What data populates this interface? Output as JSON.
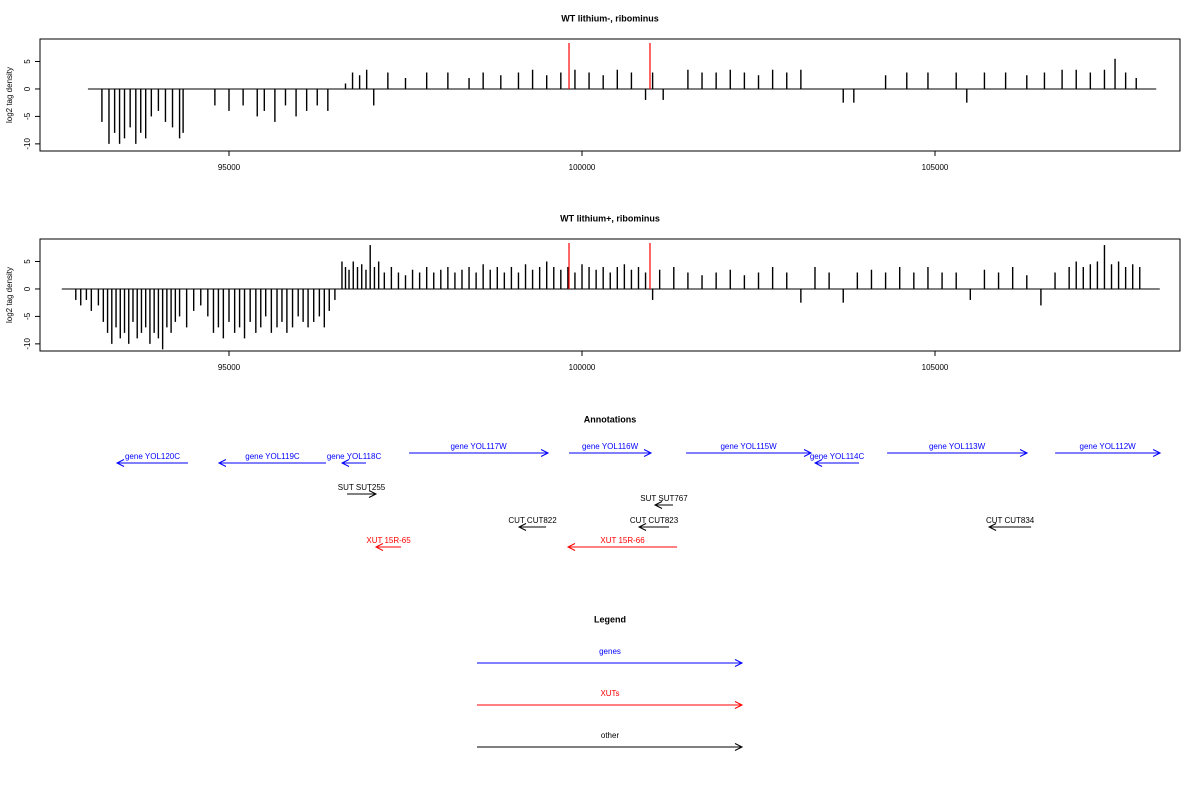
{
  "chart_data": [
    {
      "type": "bar",
      "title": "WT lithium-, ribominus",
      "y_label": "log2 tag density",
      "xlim": [
        92323,
        108470
      ],
      "ylim": [
        -11.3,
        9.1
      ],
      "xticks": [
        95000,
        100000,
        105000
      ],
      "yticks": [
        -10,
        -5,
        0,
        5
      ],
      "color": "#000000",
      "highlight_color": "#ff0000",
      "highlights": [
        99816,
        100963
      ],
      "x": [
        93200,
        93300,
        93380,
        93450,
        93520,
        93600,
        93680,
        93750,
        93820,
        93900,
        94000,
        94100,
        94200,
        94300,
        94350,
        94800,
        95000,
        95200,
        95400,
        95500,
        95650,
        95800,
        95950,
        96100,
        96250,
        96400,
        96650,
        96750,
        96850,
        96950,
        97050,
        97250,
        97500,
        97800,
        98100,
        98400,
        98600,
        98850,
        99100,
        99300,
        99500,
        99700,
        99900,
        100100,
        100300,
        100500,
        100700,
        100900,
        101000,
        101150,
        101500,
        101700,
        101900,
        102100,
        102300,
        102500,
        102700,
        102900,
        103100,
        103700,
        103850,
        104300,
        104600,
        104900,
        105300,
        105450,
        105700,
        106000,
        106300,
        106550,
        106800,
        107000,
        107200,
        107400,
        107550,
        107700,
        107850
      ],
      "values": [
        -6,
        -10,
        -8,
        -10,
        -9,
        -7,
        -10,
        -8,
        -9,
        -5,
        -4,
        -6,
        -7,
        -9,
        -8,
        -3,
        -4,
        -3,
        -5,
        -4,
        -6,
        -3,
        -5,
        -4,
        -3,
        -4,
        1,
        3,
        2.5,
        3.5,
        -3,
        3,
        2,
        3,
        3,
        2,
        3,
        2.5,
        3,
        3.5,
        2.5,
        3,
        3.5,
        3,
        2.5,
        3.5,
        3,
        -2,
        3,
        -2,
        3.5,
        3,
        3,
        3.5,
        3,
        2.5,
        3.5,
        3,
        3.5,
        -2.5,
        -2.5,
        2.5,
        3,
        3,
        3,
        -2.5,
        3,
        3,
        2.5,
        3,
        3.5,
        3.5,
        3,
        3.5,
        5.5,
        3,
        2
      ]
    },
    {
      "type": "bar",
      "title": "WT lithium+, ribominus",
      "y_label": "log2 tag density",
      "xlim": [
        92323,
        108470
      ],
      "ylim": [
        -11.3,
        9.1
      ],
      "xticks": [
        95000,
        100000,
        105000
      ],
      "yticks": [
        -10,
        -5,
        0,
        5
      ],
      "color": "#000000",
      "highlight_color": "#ff0000",
      "highlights": [
        99816,
        100963
      ],
      "x": [
        92830,
        92900,
        92980,
        93050,
        93150,
        93220,
        93280,
        93340,
        93400,
        93460,
        93520,
        93580,
        93640,
        93700,
        93760,
        93820,
        93880,
        93940,
        94000,
        94060,
        94120,
        94180,
        94240,
        94300,
        94400,
        94500,
        94600,
        94700,
        94780,
        94850,
        94920,
        95000,
        95080,
        95150,
        95220,
        95300,
        95380,
        95450,
        95520,
        95600,
        95680,
        95750,
        95820,
        95900,
        95980,
        96050,
        96120,
        96200,
        96280,
        96350,
        96420,
        96500,
        96600,
        96650,
        96700,
        96760,
        96820,
        96880,
        96940,
        97000,
        97060,
        97120,
        97200,
        97300,
        97400,
        97500,
        97600,
        97700,
        97800,
        97900,
        98000,
        98100,
        98200,
        98300,
        98400,
        98500,
        98600,
        98700,
        98800,
        98900,
        99000,
        99100,
        99200,
        99300,
        99400,
        99500,
        99600,
        99700,
        99800,
        99900,
        100000,
        100100,
        100200,
        100300,
        100400,
        100500,
        100600,
        100700,
        100800,
        100900,
        101000,
        101100,
        101300,
        101500,
        101700,
        101900,
        102100,
        102300,
        102500,
        102700,
        102900,
        103100,
        103300,
        103500,
        103700,
        103900,
        104100,
        104300,
        104500,
        104700,
        104900,
        105100,
        105300,
        105500,
        105700,
        105900,
        106100,
        106300,
        106500,
        106700,
        106900,
        107000,
        107100,
        107200,
        107300,
        107400,
        107500,
        107600,
        107700,
        107800,
        107900
      ],
      "values": [
        -2,
        -3,
        -2,
        -4,
        -3,
        -6,
        -8,
        -10,
        -7,
        -9,
        -8,
        -10,
        -6,
        -9,
        -8,
        -7,
        -10,
        -8,
        -9,
        -11,
        -7,
        -8,
        -6,
        -5,
        -7,
        -4,
        -3,
        -5,
        -8,
        -7,
        -9,
        -6,
        -8,
        -7,
        -9,
        -6,
        -8,
        -7,
        -5,
        -8,
        -7,
        -6,
        -8,
        -7,
        -5,
        -6,
        -7,
        -6,
        -5,
        -7,
        -4,
        -2,
        5,
        4,
        3.5,
        5,
        4,
        4.5,
        3.5,
        8,
        4,
        5,
        3,
        4,
        3,
        2.5,
        3.5,
        3,
        4,
        3,
        3.5,
        4,
        3,
        3.5,
        4,
        3,
        4.5,
        3.5,
        4,
        3,
        4,
        3,
        4.5,
        3.5,
        4,
        5,
        4,
        3.5,
        4,
        3,
        4.5,
        4,
        3.5,
        4,
        3,
        4,
        4.5,
        3.5,
        4,
        3,
        -2,
        3.5,
        4,
        3,
        2.5,
        3,
        3.5,
        2.5,
        3,
        4,
        3,
        -2.5,
        4,
        3,
        -2.5,
        3,
        3.5,
        3,
        4,
        3,
        4,
        3,
        3,
        -2,
        3.5,
        3,
        4,
        2.5,
        -3,
        3,
        4,
        5,
        4,
        4.5,
        5,
        8,
        4.5,
        5,
        4,
        4.5,
        4
      ]
    }
  ],
  "annotations": {
    "title": "Annotations",
    "items": [
      {
        "label": "gene YOL120C",
        "start": 94419,
        "end": 93414,
        "color": "#0000ff"
      },
      {
        "label": "gene YOL119C",
        "start": 96374,
        "end": 94858,
        "color": "#0000ff"
      },
      {
        "label": "gene YOL118C",
        "start": 96941,
        "end": 96601,
        "color": "#0000ff"
      },
      {
        "label": "gene YOL117W",
        "start": 97550,
        "end": 99519,
        "color": "#0000ff"
      },
      {
        "label": "gene YOL116W",
        "start": 99816,
        "end": 100978,
        "color": "#0000ff"
      },
      {
        "label": "gene YOL115W",
        "start": 101474,
        "end": 103244,
        "color": "#0000ff"
      },
      {
        "label": "gene YOL114C",
        "start": 103924,
        "end": 103301,
        "color": "#0000ff"
      },
      {
        "label": "gene YOL113W",
        "start": 104321,
        "end": 106304,
        "color": "#0000ff"
      },
      {
        "label": "gene YOL112W",
        "start": 106701,
        "end": 108188,
        "color": "#0000ff"
      },
      {
        "label": "SUT SUT255",
        "start": 96672,
        "end": 97082,
        "color": "#000000"
      },
      {
        "label": "SUT SUT767",
        "start": 101289,
        "end": 101034,
        "color": "#000000"
      },
      {
        "label": "CUT CUT822",
        "start": 99491,
        "end": 99108,
        "color": "#000000"
      },
      {
        "label": "CUT CUT823",
        "start": 101233,
        "end": 100808,
        "color": "#000000"
      },
      {
        "label": "CUT CUT834",
        "start": 106361,
        "end": 105766,
        "color": "#000000"
      },
      {
        "label": "XUT 15R-65",
        "start": 97437,
        "end": 97082,
        "color": "#ff0000"
      },
      {
        "label": "XUT 15R-66",
        "start": 101346,
        "end": 99802,
        "color": "#ff0000"
      }
    ]
  },
  "legend": {
    "title": "Legend",
    "items": [
      {
        "label": "genes",
        "color": "#0000ff"
      },
      {
        "label": "XUTs",
        "color": "#ff0000"
      },
      {
        "label": "other",
        "color": "#000000"
      }
    ]
  }
}
